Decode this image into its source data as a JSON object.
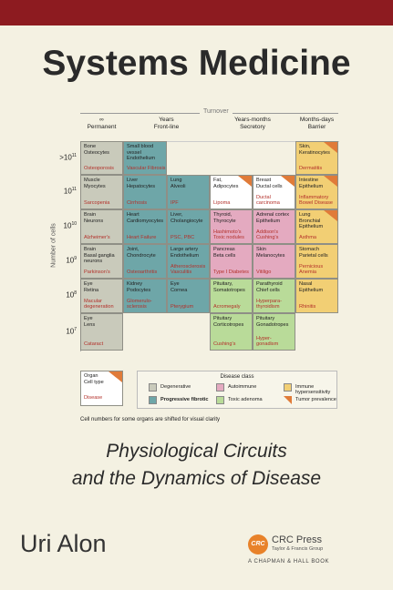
{
  "header": {
    "title": "Systems Medicine"
  },
  "figure": {
    "axis_title": "Turnover",
    "y_label": "Number of cells",
    "columns": [
      [
        "∞",
        "Permanent"
      ],
      [
        "Years",
        "Front-line"
      ],
      [
        "Years-months",
        "Secretory"
      ],
      [
        "Months-days",
        "Barrier"
      ]
    ],
    "rows": [
      {
        "label": {
          "base": ">10",
          "exp": "11"
        },
        "cells": [
          {
            "lines": [
              "Bone",
              "Osteocytes"
            ],
            "disease": [
              "Osteoporosis"
            ],
            "color": "#c9cabb"
          },
          {
            "lines": [
              "Small blood",
              "vessel",
              "Endothelium"
            ],
            "disease": [
              "Vascular Fibrosis"
            ],
            "color": "#6ea6a8"
          },
          null,
          null,
          null,
          {
            "lines": [
              "Skin,",
              "Keratinocytes"
            ],
            "disease": [
              "Dermatitis"
            ],
            "color": "#f2cf74",
            "tumor": true
          }
        ]
      },
      {
        "label": {
          "base": "10",
          "exp": "11"
        },
        "cells": [
          {
            "lines": [
              "Muscle",
              "Myocytes"
            ],
            "disease": [
              "Sarcopenia"
            ],
            "color": "#c9cabb"
          },
          {
            "lines": [
              "Liver",
              "Hepatocytes"
            ],
            "disease": [
              "Cirrhosis"
            ],
            "color": "#6ea6a8"
          },
          {
            "lines": [
              "Lung",
              "Alveoli"
            ],
            "disease": [
              "IPF"
            ],
            "color": "#6ea6a8"
          },
          {
            "lines": [
              "Fat,",
              "Adipocytes"
            ],
            "disease": [
              "Lipoma"
            ],
            "color": "#ffffff",
            "tumor": true
          },
          {
            "lines": [
              "Breast",
              "Ductal cells"
            ],
            "disease": [
              "Ductal",
              "carcinoma"
            ],
            "color": "#ffffff",
            "tumor": true
          },
          {
            "lines": [
              "Intestine",
              "Epithelium"
            ],
            "disease": [
              "Inflammatory",
              "Bowel Disease"
            ],
            "color": "#f2cf74",
            "tumor": true
          }
        ]
      },
      {
        "label": {
          "base": "10",
          "exp": "10"
        },
        "cells": [
          {
            "lines": [
              "Brain",
              "Neurons"
            ],
            "disease": [
              "Alzheimer's"
            ],
            "color": "#c9cabb"
          },
          {
            "lines": [
              "Heart",
              "Cardiomyocytes"
            ],
            "disease": [
              "Heart Failure"
            ],
            "color": "#6ea6a8"
          },
          {
            "lines": [
              "Liver,",
              "Cholangiocyte"
            ],
            "disease": [
              "PSC, PBC"
            ],
            "color": "#6ea6a8"
          },
          {
            "lines": [
              "Thyroid,",
              "Thyrocyte"
            ],
            "disease": [
              "Hashimoto's",
              "Toxic nodules"
            ],
            "color": "#e4aac0"
          },
          {
            "lines": [
              "Adrenal cortex",
              "Epithelium"
            ],
            "disease": [
              "Addison's",
              "Cushing's"
            ],
            "color": "#e4aac0"
          },
          {
            "lines": [
              "Lung",
              "Bronchial",
              "Epithelium"
            ],
            "disease": [
              "Asthma"
            ],
            "color": "#f2cf74",
            "tumor": true
          }
        ]
      },
      {
        "label": {
          "base": "10",
          "exp": "9"
        },
        "cells": [
          {
            "lines": [
              "Brain",
              "Basal ganglia",
              "neurons"
            ],
            "disease": [
              "Parkinson's"
            ],
            "color": "#c9cabb"
          },
          {
            "lines": [
              "Joint,",
              "Chondrocyte"
            ],
            "disease": [
              "Osteoarthritis"
            ],
            "color": "#6ea6a8"
          },
          {
            "lines": [
              "Large artery",
              "Endothelium"
            ],
            "disease": [
              "Atherosclerosis",
              "Vasculitis"
            ],
            "color": "#6ea6a8"
          },
          {
            "lines": [
              "Pancreas",
              "Beta cells"
            ],
            "disease": [
              "Type I Diabetes"
            ],
            "color": "#e4aac0"
          },
          {
            "lines": [
              "Skin",
              "Melanocytes"
            ],
            "disease": [
              "Vitiligo"
            ],
            "color": "#e4aac0"
          },
          {
            "lines": [
              "Stomach",
              "Parietal cells"
            ],
            "disease": [
              "Pernicious",
              "Anemia"
            ],
            "color": "#f2cf74"
          }
        ]
      },
      {
        "label": {
          "base": "10",
          "exp": "8"
        },
        "cells": [
          {
            "lines": [
              "Eye",
              "Retina"
            ],
            "disease": [
              "Macular",
              "degeneration"
            ],
            "color": "#c9cabb"
          },
          {
            "lines": [
              "Kidney",
              "Podocytes"
            ],
            "disease": [
              "Glomerulo-",
              "sclerosis"
            ],
            "color": "#6ea6a8"
          },
          {
            "lines": [
              "Eye",
              "Cornea"
            ],
            "disease": [
              "Pterygium"
            ],
            "color": "#6ea6a8"
          },
          {
            "lines": [
              "Pituitary,",
              "Somatotropes"
            ],
            "disease": [
              "Acromegaly"
            ],
            "color": "#b9db99"
          },
          {
            "lines": [
              "Parathyroid",
              "Chief cells"
            ],
            "disease": [
              "Hyperpara-",
              "thyroidism"
            ],
            "color": "#b9db99"
          },
          {
            "lines": [
              "Nasal",
              "Epithelium"
            ],
            "disease": [
              "Rhinitis"
            ],
            "color": "#f2cf74"
          }
        ]
      },
      {
        "label": {
          "base": "10",
          "exp": "7"
        },
        "cells": [
          {
            "lines": [
              "Eye",
              "Lens"
            ],
            "disease": [
              "Cataract"
            ],
            "color": "#c9cabb"
          },
          null,
          null,
          {
            "lines": [
              "Pituitary",
              "Corticotropes"
            ],
            "disease": [
              "Cushing's"
            ],
            "color": "#b9db99"
          },
          {
            "lines": [
              "Pituitary",
              "Gonadotropes"
            ],
            "disease": [
              "Hyper-",
              "gonadism"
            ],
            "color": "#b9db99"
          },
          null
        ]
      }
    ],
    "key": {
      "lines": [
        "Organ",
        "Cell type"
      ],
      "disease": "Disease"
    },
    "legend": {
      "title": "Disease class",
      "items": [
        {
          "name": "Degenerative",
          "color": "#c9cabb"
        },
        {
          "name": "Autoimmune",
          "color": "#e4aac0"
        },
        {
          "name": "Immune hypersensitivity",
          "color": "#f2cf74"
        },
        {
          "name": "Progressive fibrotic",
          "color": "#6ea6a8"
        },
        {
          "name": "Toxic adenoma",
          "color": "#b9db99"
        },
        {
          "name": "Tumor prevalence",
          "color": "#e07b39"
        }
      ]
    },
    "note": "Cell numbers for some organs are shifted for visual clarity"
  },
  "subtitle": [
    "Physiological Circuits",
    "and the Dynamics of Disease"
  ],
  "author": "Uri Alon",
  "publisher": {
    "logo": "CRC",
    "name": "CRC Press",
    "group": "Taylor & Francis Group",
    "imprint": "A CHAPMAN & HALL BOOK"
  }
}
